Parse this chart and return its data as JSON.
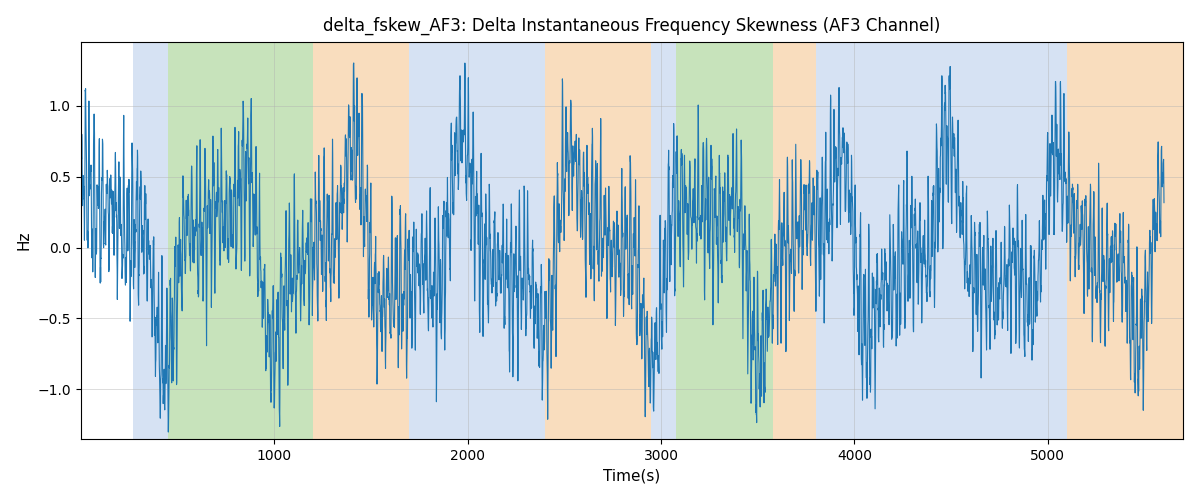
{
  "title": "delta_fskew_AF3: Delta Instantaneous Frequency Skewness (AF3 Channel)",
  "xlabel": "Time(s)",
  "ylabel": "Hz",
  "xlim": [
    0,
    5700
  ],
  "ylim": [
    -1.35,
    1.45
  ],
  "yticks": [
    -1.0,
    -0.5,
    0.0,
    0.5,
    1.0
  ],
  "xticks": [
    1000,
    2000,
    3000,
    4000,
    5000
  ],
  "line_color": "#1f77b4",
  "line_width": 0.8,
  "grid_color": "#b0b0b0",
  "grid_alpha": 0.6,
  "bg_white": "#ffffff",
  "color_blue": "#aec6e8",
  "color_green": "#90c978",
  "color_orange": "#f5c18a",
  "alpha_blue": 0.5,
  "alpha_green": 0.5,
  "alpha_orange": 0.55,
  "bands": [
    {
      "xmin": 270,
      "xmax": 450,
      "type": "blue"
    },
    {
      "xmin": 450,
      "xmax": 1200,
      "type": "green"
    },
    {
      "xmin": 1200,
      "xmax": 1700,
      "type": "orange"
    },
    {
      "xmin": 1700,
      "xmax": 2400,
      "type": "blue"
    },
    {
      "xmin": 2400,
      "xmax": 2950,
      "type": "orange"
    },
    {
      "xmin": 2950,
      "xmax": 3080,
      "type": "blue"
    },
    {
      "xmin": 3080,
      "xmax": 3580,
      "type": "green"
    },
    {
      "xmin": 3580,
      "xmax": 3800,
      "type": "orange"
    },
    {
      "xmin": 3800,
      "xmax": 4650,
      "type": "blue"
    },
    {
      "xmin": 4650,
      "xmax": 5100,
      "type": "blue"
    },
    {
      "xmin": 5100,
      "xmax": 5700,
      "type": "orange"
    }
  ]
}
